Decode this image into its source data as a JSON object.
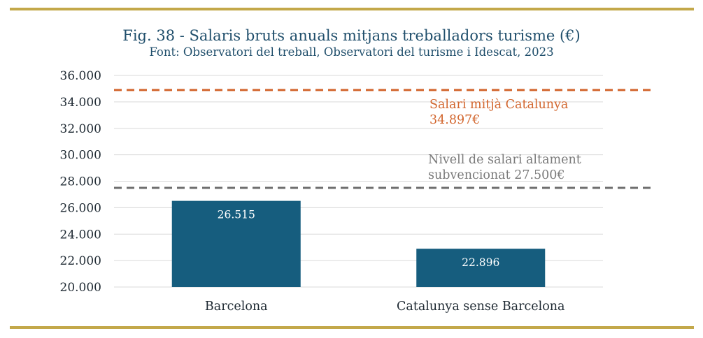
{
  "colors": {
    "rule": "#c3a84a",
    "bar": "#165d7e",
    "grid": "#d9d9d9",
    "title": "#1f4e6b",
    "line_catalunya": "#d2662e",
    "line_subsidized": "#6e6e6e",
    "annotation_subsidized": "#7a7a7a"
  },
  "chart_data": {
    "type": "bar",
    "title": "Fig. 38 - Salaris bruts anuals mitjans treballadors turisme (€)",
    "subtitle": "Font: Observatori del treball, Observatori del turisme i Idescat, 2023",
    "categories": [
      "Barcelona",
      "Catalunya sense Barcelona"
    ],
    "values": [
      26515,
      22896
    ],
    "data_labels": [
      "26.515",
      "22.896"
    ],
    "ylim": [
      20000,
      36000
    ],
    "yticks": [
      20000,
      22000,
      24000,
      26000,
      28000,
      30000,
      32000,
      34000,
      36000
    ],
    "ytick_labels": [
      "20.000",
      "22.000",
      "24.000",
      "26.000",
      "28.000",
      "30.000",
      "32.000",
      "34.000",
      "36.000"
    ],
    "grid": true,
    "reference_lines": [
      {
        "value": 34897,
        "label_lines": [
          "Salari mitjà Catalunya",
          "34.897€"
        ],
        "color": "#d2662e"
      },
      {
        "value": 27500,
        "label_lines": [
          "Nivell de salari altament",
          "subvencionat 27.500€"
        ],
        "color": "#6e6e6e"
      }
    ]
  }
}
